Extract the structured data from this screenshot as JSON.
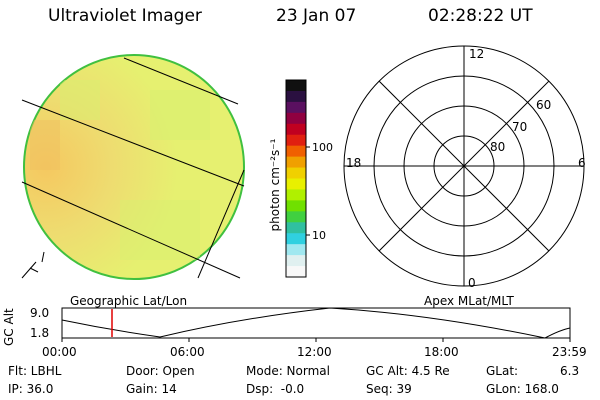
{
  "header": {
    "title": "Ultraviolet Imager",
    "date": "23 Jan 07",
    "time": "02:28:22 UT"
  },
  "colorbar": {
    "unit_label": "photon cm⁻²s⁻¹",
    "tick_100": "100",
    "tick_10": "10",
    "colors": [
      "#101010",
      "#2a1040",
      "#5a1060",
      "#900040",
      "#c00020",
      "#e02010",
      "#f06000",
      "#f0a000",
      "#f0d000",
      "#e8f000",
      "#b0f000",
      "#70e000",
      "#40d040",
      "#30c0a0",
      "#30d0e0",
      "#a0e8f0",
      "#e0f0f0",
      "#f8f8f8"
    ]
  },
  "geo_image": {
    "label": "Geographic Lat/Lon",
    "fill": "#e8f070",
    "tint": "#f8d070"
  },
  "polar": {
    "label": "Apex MLat/MLT",
    "mlt_top": "12",
    "mlt_left": "18",
    "mlt_right": "6",
    "mlt_bottom": "0",
    "lat_60": "60",
    "lat_70": "70",
    "lat_80": "80"
  },
  "timeline": {
    "ylabel": "GC Alt",
    "y_top": "9.0",
    "y_bottom": "1.8",
    "ticks": [
      "00:00",
      "06:00",
      "12:00",
      "18:00",
      "23:59"
    ],
    "current_marker_color": "#e00000"
  },
  "info": {
    "flt": "Flt: LBHL",
    "ip": "IP: 36.0",
    "door": "Door: Open",
    "gain": "Gain: 14",
    "mode": "Mode: Normal",
    "dsp": "Dsp:  -0.0",
    "gcalt": "GC Alt: 4.5 Re",
    "seq": "Seq: 39",
    "glat": "GLat:",
    "glat_val": "6.3",
    "glon": "GLon: 168.0"
  }
}
